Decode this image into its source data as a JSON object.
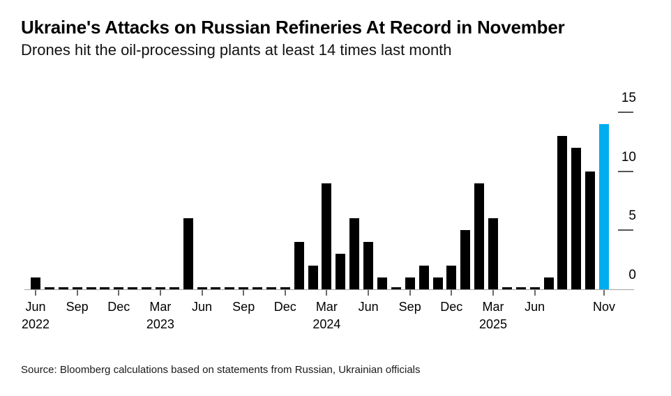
{
  "source_note": "Source: Bloomberg calculations based on statements from Russian, Ukrainian officials",
  "colors": {
    "bar": "#000000",
    "highlight": "#00ADEF",
    "axis_line": "#a3a3a3",
    "tick_mark": "#6b6b6b",
    "text": "#000000"
  },
  "chart_data": {
    "type": "bar",
    "title": "Ukraine's Attacks on Russian Refineries At Record in November",
    "subtitle": "Drones hit the oil-processing plants at least 14 times last month",
    "x": [
      "Jun 2022",
      "Jul 2022",
      "Aug 2022",
      "Sep 2022",
      "Oct 2022",
      "Nov 2022",
      "Dec 2022",
      "Jan 2023",
      "Feb 2023",
      "Mar 2023",
      "Apr 2023",
      "May 2023",
      "Jun 2023",
      "Jul 2023",
      "Aug 2023",
      "Sep 2023",
      "Oct 2023",
      "Nov 2023",
      "Dec 2023",
      "Jan 2024",
      "Feb 2024",
      "Mar 2024",
      "Apr 2024",
      "May 2024",
      "Jun 2024",
      "Jul 2024",
      "Aug 2024",
      "Sep 2024",
      "Oct 2024",
      "Nov 2024",
      "Dec 2024",
      "Jan 2025",
      "Feb 2025",
      "Mar 2025",
      "Apr 2025",
      "May 2025",
      "Jun 2025",
      "Jul 2025",
      "Aug 2025",
      "Sep 2025",
      "Oct 2025",
      "Nov 2025"
    ],
    "values": [
      1,
      0,
      0,
      0,
      0,
      0,
      0,
      0,
      0,
      0,
      0,
      6,
      0,
      0,
      0,
      0,
      0,
      0,
      0,
      4,
      2,
      9,
      3,
      6,
      4,
      1,
      0,
      1,
      2,
      1,
      2,
      5,
      9,
      6,
      0,
      0,
      0,
      1,
      13,
      12,
      10,
      14
    ],
    "highlight_index": 41,
    "ylim": [
      0,
      15
    ],
    "yticks": [
      0,
      5,
      10,
      15
    ],
    "ytick_side": "right",
    "grid": false,
    "legend": "none",
    "xticks": [
      {
        "index": 0,
        "month": "Jun",
        "year": "2022"
      },
      {
        "index": 3,
        "month": "Sep"
      },
      {
        "index": 6,
        "month": "Dec"
      },
      {
        "index": 9,
        "month": "Mar",
        "year": "2023"
      },
      {
        "index": 12,
        "month": "Jun"
      },
      {
        "index": 15,
        "month": "Sep"
      },
      {
        "index": 18,
        "month": "Dec"
      },
      {
        "index": 21,
        "month": "Mar",
        "year": "2024"
      },
      {
        "index": 24,
        "month": "Jun"
      },
      {
        "index": 27,
        "month": "Sep"
      },
      {
        "index": 30,
        "month": "Dec"
      },
      {
        "index": 33,
        "month": "Mar",
        "year": "2025"
      },
      {
        "index": 36,
        "month": "Jun"
      },
      {
        "index": 41,
        "month": "Nov"
      }
    ]
  }
}
